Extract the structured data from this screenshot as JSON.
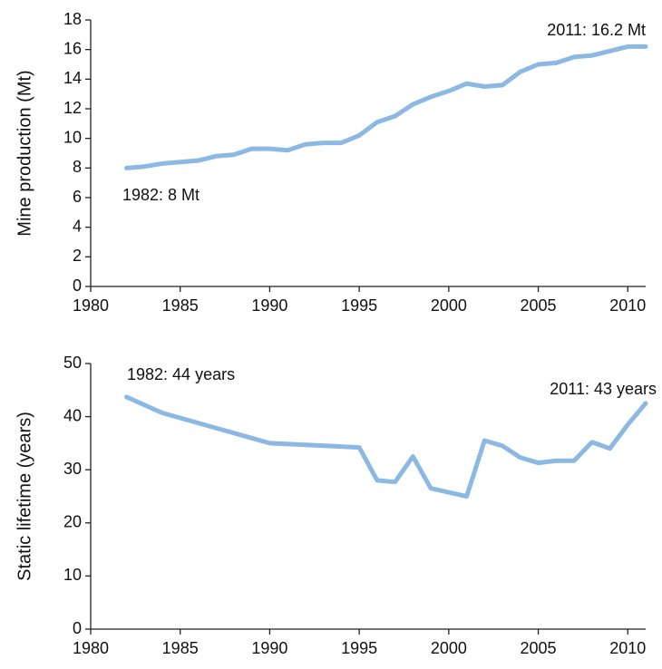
{
  "chart_data": [
    {
      "type": "line",
      "ylabel": "Mine production (Mt)",
      "x": [
        1982,
        1983,
        1984,
        1985,
        1986,
        1987,
        1988,
        1989,
        1990,
        1991,
        1992,
        1993,
        1994,
        1995,
        1996,
        1997,
        1998,
        1999,
        2000,
        2001,
        2002,
        2003,
        2004,
        2005,
        2006,
        2007,
        2008,
        2009,
        2010,
        2011
      ],
      "series": [
        {
          "color": "#8cb8e4",
          "values": [
            8.0,
            8.1,
            8.3,
            8.4,
            8.5,
            8.8,
            8.9,
            9.3,
            9.3,
            9.2,
            9.6,
            9.7,
            9.7,
            10.2,
            11.1,
            11.5,
            12.3,
            12.8,
            13.2,
            13.7,
            13.5,
            13.6,
            14.5,
            15.0,
            15.1,
            15.5,
            15.6,
            15.9,
            16.2,
            16.2
          ]
        }
      ],
      "xlim": [
        1980,
        2011
      ],
      "xticks": [
        1980,
        1985,
        1990,
        1995,
        2000,
        2005,
        2010
      ],
      "ylim": [
        0,
        18
      ],
      "yticks": [
        0,
        2,
        4,
        6,
        8,
        10,
        12,
        14,
        16,
        18
      ],
      "annotations": [
        "1982: 8 Mt",
        "2011: 16.2 Mt"
      ]
    },
    {
      "type": "line",
      "ylabel": "Static lifetime (years)",
      "x": [
        1982,
        1984,
        1990,
        1995,
        1996,
        1997,
        1998,
        1999,
        2001,
        2002,
        2003,
        2004,
        2005,
        2006,
        2007,
        2008,
        2009,
        2010,
        2011
      ],
      "series": [
        {
          "color": "#8cb8e4",
          "values": [
            43.7,
            40.7,
            35.0,
            34.2,
            28.0,
            27.7,
            32.5,
            26.5,
            25.0,
            35.5,
            34.5,
            32.3,
            31.3,
            31.7,
            31.7,
            35.2,
            34.0,
            38.5,
            42.5
          ]
        }
      ],
      "xlim": [
        1980,
        2011
      ],
      "xticks": [
        1980,
        1985,
        1990,
        1995,
        2000,
        2005,
        2010
      ],
      "ylim": [
        0,
        50
      ],
      "yticks": [
        0,
        10,
        20,
        30,
        40,
        50
      ],
      "annotations": [
        "1982: 44 years",
        "2011: 43 years"
      ]
    }
  ]
}
